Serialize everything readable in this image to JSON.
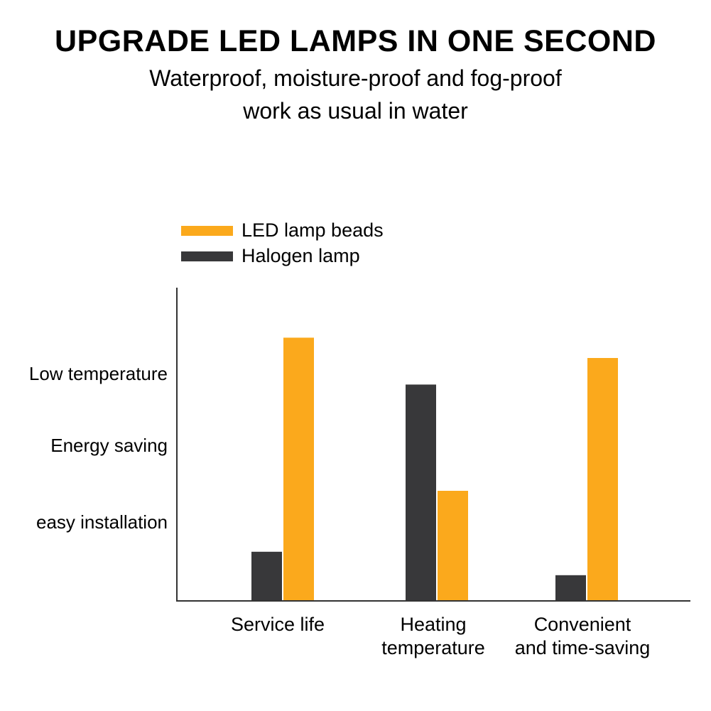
{
  "header": {
    "title": "UPGRADE LED LAMPS IN ONE SECOND",
    "subtitle_line1": "Waterproof, moisture-proof and fog-proof",
    "subtitle_line2": "work as usual in water"
  },
  "chart_data": {
    "type": "bar",
    "title": "",
    "categories": [
      "Service life",
      "Heating temperature",
      "Convenient and time-saving"
    ],
    "category_lines": [
      [
        "Service life"
      ],
      [
        "Heating",
        "temperature"
      ],
      [
        "Convenient",
        "and time-saving"
      ]
    ],
    "series": [
      {
        "name": "Halogen lamp",
        "color": "#38383a",
        "values": [
          15.5,
          69,
          8
        ]
      },
      {
        "name": "LED lamp beads",
        "color": "#fba91c",
        "values": [
          84,
          35,
          77.5
        ]
      }
    ],
    "legend": [
      "LED lamp beads",
      "Halogen lamp"
    ],
    "legend_placement": "top-left",
    "y_labels": [
      "Low temperature",
      "Energy saving",
      "easy installation"
    ],
    "xlabel": "",
    "ylabel": "",
    "ylim": [
      0,
      100
    ],
    "grid": false
  }
}
